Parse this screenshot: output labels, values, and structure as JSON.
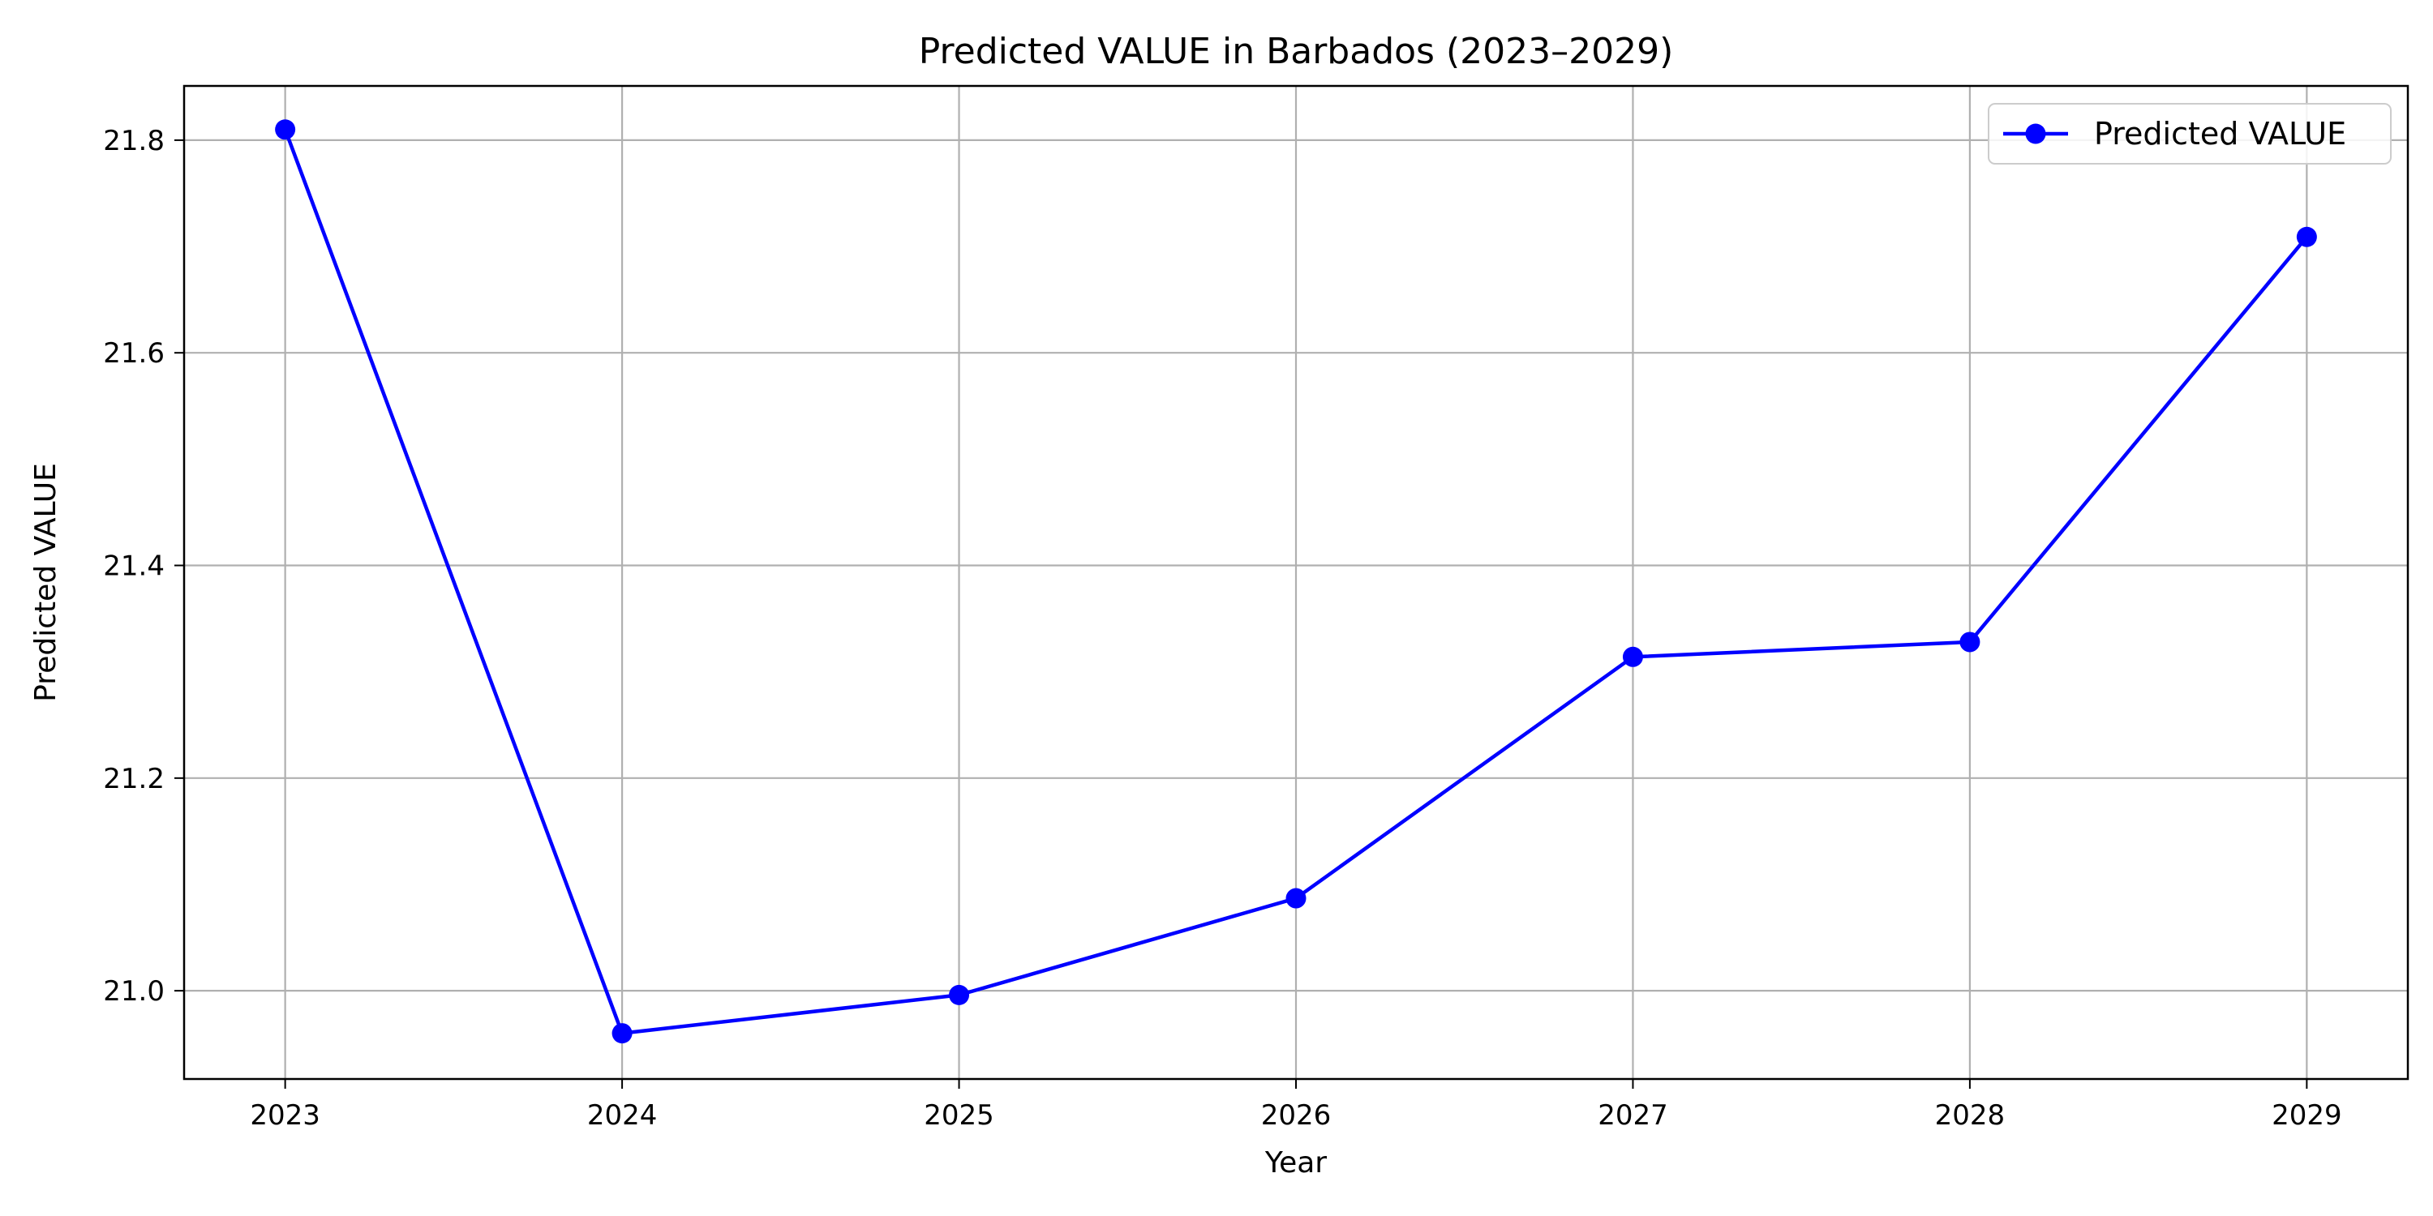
{
  "chart_data": {
    "type": "line",
    "title": "Predicted VALUE in Barbados (2023–2029)",
    "xlabel": "Year",
    "ylabel": "Predicted VALUE",
    "x": [
      2023,
      2024,
      2025,
      2026,
      2027,
      2028,
      2029
    ],
    "x_tick_labels": [
      "2023",
      "2024",
      "2025",
      "2026",
      "2027",
      "2028",
      "2029"
    ],
    "y_ticks": [
      21.0,
      21.2,
      21.4,
      21.6,
      21.8
    ],
    "y_tick_labels": [
      "21.0",
      "21.2",
      "21.4",
      "21.6",
      "21.8"
    ],
    "xlim": [
      2022.7,
      2029.3
    ],
    "ylim": [
      20.917,
      21.851
    ],
    "grid": true,
    "legend_position": "top-right",
    "series": [
      {
        "name": "Predicted VALUE",
        "color": "#0000ff",
        "marker": "circle",
        "values": [
          21.81,
          20.96,
          20.996,
          21.087,
          21.314,
          21.328,
          21.709
        ]
      }
    ]
  }
}
